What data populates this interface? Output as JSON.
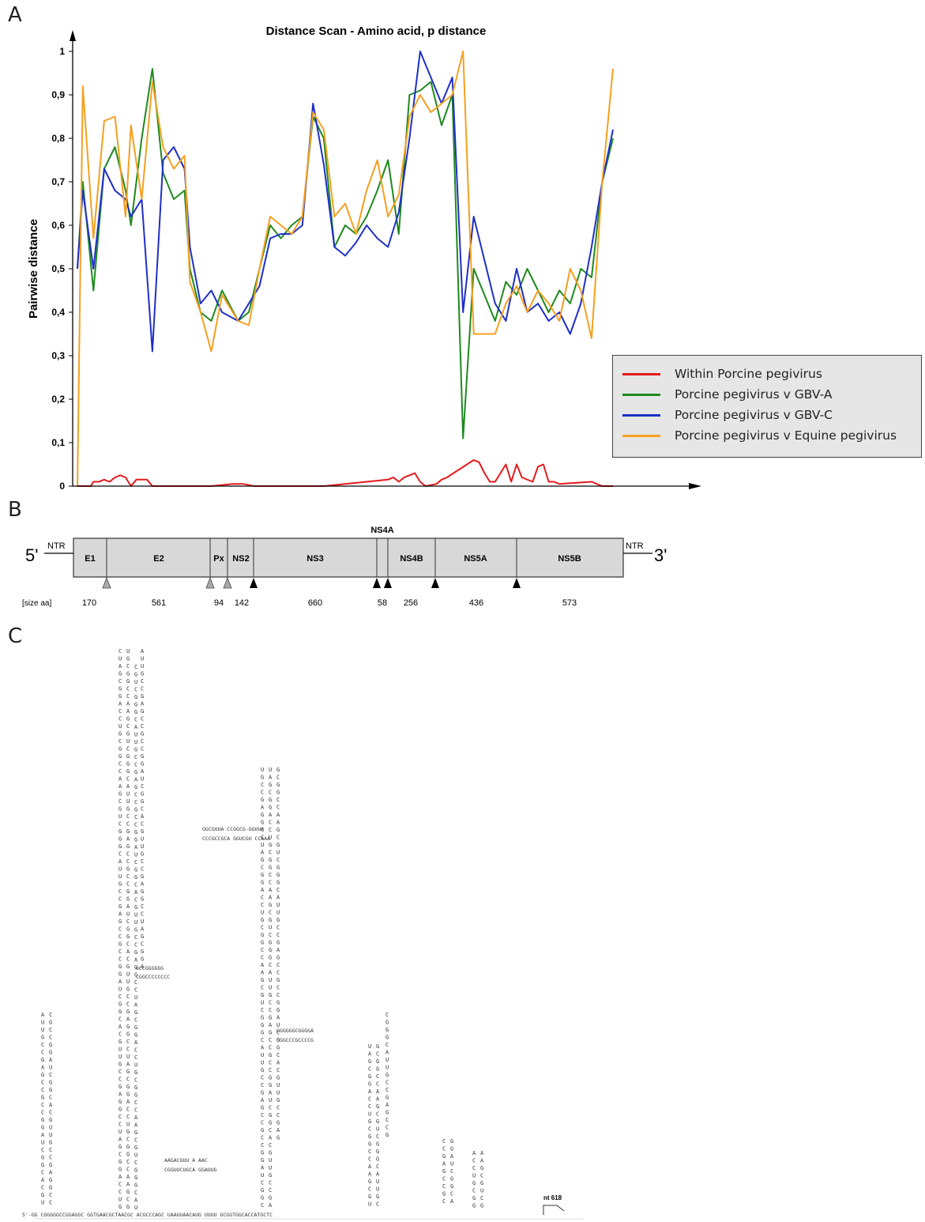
{
  "panels": {
    "a": "A",
    "b": "B",
    "c": "C"
  },
  "chart_data": {
    "type": "line",
    "title": "Distance Scan - Amino acid, p distance",
    "ylabel": "Pairwise distance",
    "xlabel": "",
    "ylim": [
      0,
      1
    ],
    "yticks": [
      "0",
      "0,1",
      "0,2",
      "0,3",
      "0,4",
      "0,5",
      "0,6",
      "0,7",
      "0,8",
      "0,9",
      "1"
    ],
    "legend_position": "right",
    "series": [
      {
        "name": "Within Porcine pegivirus",
        "color": "#e41a1c",
        "x": [
          0,
          0.025,
          0.03,
          0.04,
          0.05,
          0.06,
          0.07,
          0.08,
          0.09,
          0.1,
          0.11,
          0.13,
          0.14,
          0.16,
          0.17,
          0.2,
          0.22,
          0.25,
          0.29,
          0.31,
          0.33,
          0.43,
          0.44,
          0.46,
          0.58,
          0.59,
          0.6,
          0.61,
          0.62,
          0.63,
          0.64,
          0.65,
          0.67,
          0.68,
          0.69,
          0.74,
          0.75,
          0.76,
          0.77,
          0.78,
          0.8,
          0.81,
          0.82,
          0.83,
          0.85,
          0.86,
          0.87,
          0.88,
          0.89,
          0.9,
          0.96,
          0.97,
          0.98,
          0.99,
          1.0
        ],
        "y": [
          0,
          0,
          0.01,
          0.01,
          0.015,
          0.01,
          0.02,
          0.025,
          0.02,
          0,
          0.015,
          0.015,
          0,
          0,
          0,
          0,
          0,
          0,
          0.005,
          0.005,
          0,
          0,
          0,
          0,
          0.015,
          0.02,
          0.01,
          0.02,
          0.025,
          0.03,
          0.01,
          0,
          0.005,
          0.015,
          0.02,
          0.06,
          0.055,
          0.03,
          0.01,
          0.01,
          0.05,
          0.01,
          0.05,
          0.02,
          0.01,
          0.045,
          0.05,
          0.01,
          0.01,
          0.005,
          0.01,
          0.005,
          0,
          0,
          0
        ]
      },
      {
        "name": "Porcine pegivirus v GBV-A",
        "color": "#1f8a1f",
        "x": [
          0,
          0.01,
          0.03,
          0.05,
          0.07,
          0.09,
          0.1,
          0.12,
          0.14,
          0.16,
          0.18,
          0.2,
          0.21,
          0.23,
          0.25,
          0.27,
          0.3,
          0.32,
          0.34,
          0.36,
          0.38,
          0.4,
          0.42,
          0.44,
          0.46,
          0.48,
          0.5,
          0.52,
          0.54,
          0.56,
          0.58,
          0.6,
          0.62,
          0.64,
          0.66,
          0.68,
          0.7,
          0.72,
          0.74,
          0.78,
          0.8,
          0.82,
          0.84,
          0.86,
          0.88,
          0.9,
          0.92,
          0.94,
          0.96,
          0.98,
          1.0
        ],
        "y": [
          0.5,
          0.7,
          0.45,
          0.73,
          0.78,
          0.68,
          0.6,
          0.8,
          0.96,
          0.72,
          0.66,
          0.68,
          0.5,
          0.4,
          0.38,
          0.45,
          0.38,
          0.4,
          0.5,
          0.6,
          0.57,
          0.6,
          0.62,
          0.85,
          0.8,
          0.55,
          0.6,
          0.58,
          0.62,
          0.68,
          0.75,
          0.58,
          0.9,
          0.91,
          0.93,
          0.83,
          0.9,
          0.11,
          0.5,
          0.38,
          0.47,
          0.44,
          0.5,
          0.45,
          0.4,
          0.45,
          0.42,
          0.5,
          0.48,
          0.7,
          0.8
        ]
      },
      {
        "name": "Porcine pegivirus v GBV-C",
        "color": "#1f2fc8",
        "x": [
          0,
          0.01,
          0.03,
          0.05,
          0.07,
          0.09,
          0.1,
          0.12,
          0.14,
          0.16,
          0.18,
          0.2,
          0.21,
          0.23,
          0.25,
          0.27,
          0.3,
          0.32,
          0.34,
          0.36,
          0.38,
          0.4,
          0.42,
          0.44,
          0.46,
          0.48,
          0.5,
          0.52,
          0.54,
          0.56,
          0.58,
          0.6,
          0.62,
          0.64,
          0.66,
          0.68,
          0.7,
          0.72,
          0.74,
          0.78,
          0.8,
          0.82,
          0.84,
          0.86,
          0.88,
          0.9,
          0.92,
          0.94,
          0.96,
          0.98,
          1.0
        ],
        "y": [
          0.5,
          0.68,
          0.5,
          0.73,
          0.68,
          0.66,
          0.62,
          0.66,
          0.31,
          0.75,
          0.78,
          0.73,
          0.55,
          0.42,
          0.45,
          0.4,
          0.38,
          0.42,
          0.46,
          0.57,
          0.58,
          0.58,
          0.6,
          0.88,
          0.74,
          0.55,
          0.53,
          0.56,
          0.6,
          0.57,
          0.55,
          0.63,
          0.8,
          1.0,
          0.94,
          0.88,
          0.94,
          0.4,
          0.62,
          0.42,
          0.38,
          0.5,
          0.4,
          0.42,
          0.38,
          0.4,
          0.35,
          0.42,
          0.55,
          0.7,
          0.82
        ]
      },
      {
        "name": "Porcine pegivirus v Equine pegivirus",
        "color": "#f4a020",
        "x": [
          0,
          0.01,
          0.03,
          0.05,
          0.07,
          0.09,
          0.1,
          0.12,
          0.14,
          0.16,
          0.18,
          0.2,
          0.21,
          0.23,
          0.25,
          0.27,
          0.3,
          0.32,
          0.34,
          0.36,
          0.38,
          0.4,
          0.42,
          0.44,
          0.46,
          0.48,
          0.5,
          0.52,
          0.54,
          0.56,
          0.58,
          0.6,
          0.62,
          0.64,
          0.66,
          0.68,
          0.7,
          0.72,
          0.74,
          0.78,
          0.8,
          0.82,
          0.84,
          0.86,
          0.88,
          0.9,
          0.92,
          0.94,
          0.96,
          0.98,
          1.0
        ],
        "y": [
          0.0,
          0.92,
          0.57,
          0.84,
          0.85,
          0.62,
          0.83,
          0.66,
          0.93,
          0.78,
          0.73,
          0.76,
          0.47,
          0.4,
          0.31,
          0.44,
          0.38,
          0.37,
          0.5,
          0.62,
          0.6,
          0.58,
          0.62,
          0.86,
          0.82,
          0.62,
          0.65,
          0.58,
          0.68,
          0.75,
          0.62,
          0.67,
          0.85,
          0.9,
          0.86,
          0.88,
          0.9,
          1.0,
          0.35,
          0.35,
          0.42,
          0.46,
          0.4,
          0.45,
          0.42,
          0.38,
          0.5,
          0.45,
          0.34,
          0.7,
          0.96
        ]
      }
    ]
  },
  "genome_map": {
    "five_prime": "5'",
    "three_prime": "3'",
    "ntr_left": "NTR",
    "ntr_right": "NTR",
    "regions": [
      "E1",
      "E2",
      "Px",
      "NS2",
      "NS3",
      "",
      "NS4B",
      "NS5A",
      "NS5B"
    ],
    "ns4a_label": "NS4A",
    "size_label": "[size aa]",
    "sizes": [
      "170",
      "561",
      "94",
      "142",
      "660",
      "58",
      "256",
      "436",
      "573"
    ]
  },
  "rna": {
    "bottom_sequence": "5'-GG CGGGGGCCGGAGGC GGTGAACGCTAACGC ACGCCCAGC UAAUUAACAUG UUUU GCGGTGGCACCATGCTC",
    "nt_label": "nt 618",
    "seq_a": "GCCGGGGGG",
    "seq_b": "CGGCCCCCCCC",
    "seq_c": "GGGGGGCGGGGA",
    "seq_d": "CGGCCCGCCCCG",
    "seq_e": "AAGACGUU A AAC",
    "seq_f": "CGGUUCUGCA GGAUUG",
    "seq_g": "GGCGUUA CCGGCG-GGUUA",
    "seq_h": "CCCGCCGCA GGUCGU CCAAA"
  }
}
